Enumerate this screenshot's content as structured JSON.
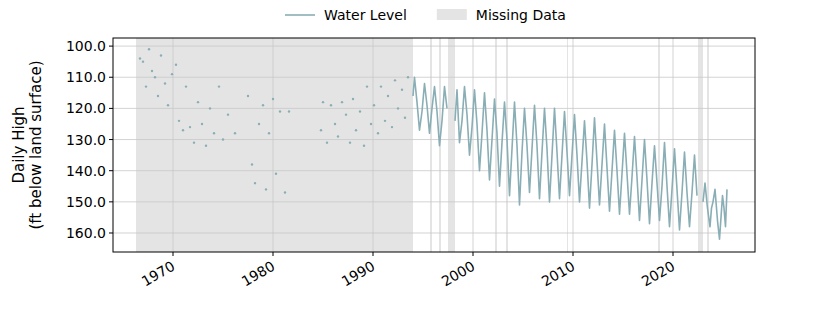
{
  "chart_data": {
    "type": "line",
    "ylabel": "Daily High\n(ft below land surface)",
    "xlim": [
      1964.0,
      2028.2
    ],
    "xticks": [
      1970,
      1980,
      1990,
      2000,
      2010,
      2020
    ],
    "ylim": [
      166.1,
      97.4
    ],
    "yticks": [
      {
        "value": 100,
        "label": "100.0"
      },
      {
        "value": 110,
        "label": "110.0"
      },
      {
        "value": 120,
        "label": "120.0"
      },
      {
        "value": 130,
        "label": "130.0"
      },
      {
        "value": 140,
        "label": "140.0"
      },
      {
        "value": 150,
        "label": "150.0"
      },
      {
        "value": 160,
        "label": "160.0"
      }
    ],
    "grid": true,
    "legend": "top",
    "x": [
      1966.7,
      1966.7,
      1967.0,
      1967.0,
      1967.3,
      1967.3,
      1967.6,
      1967.6,
      1967.9,
      1967.9,
      1968.2,
      1968.2,
      1968.5,
      1968.5,
      1968.8,
      1968.8,
      1969.2,
      1969.2,
      1969.5,
      1969.5,
      1969.9,
      1969.9,
      1970.3,
      1970.3,
      1970.6,
      1970.6,
      1971.0,
      1971.0,
      1971.3,
      1971.3,
      1971.7,
      1971.7,
      1972.1,
      1972.1,
      1972.5,
      1972.5,
      1972.9,
      1972.9,
      1973.3,
      1973.3,
      1973.7,
      1973.7,
      1974.1,
      1974.1,
      1974.6,
      1974.6,
      1975.0,
      1975.0,
      1975.5,
      1975.5,
      1976.2,
      1976.2,
      1977.5,
      1977.5,
      1977.9,
      1977.9,
      1978.2,
      1978.2,
      1978.6,
      1978.6,
      1979.0,
      1979.0,
      1979.3,
      1979.3,
      1979.6,
      1979.6,
      1980.0,
      1980.0,
      1980.3,
      1980.3,
      1980.7,
      1980.7,
      1981.2,
      1981.2,
      1981.6,
      1981.6,
      1984.8,
      1984.8,
      1985.0,
      1985.0,
      1985.4,
      1985.4,
      1985.8,
      1985.8,
      1986.2,
      1986.2,
      1986.5,
      1986.5,
      1986.9,
      1986.9,
      1987.3,
      1987.3,
      1987.7,
      1987.7,
      1988.0,
      1988.0,
      1988.3,
      1988.3,
      1988.7,
      1988.7,
      1989.1,
      1989.1,
      1989.4,
      1989.4,
      1989.8,
      1989.8,
      1990.1,
      1990.1,
      1990.5,
      1990.5,
      1990.8,
      1990.8,
      1991.2,
      1991.2,
      1991.5,
      1991.5,
      1991.9,
      1991.9,
      1992.2,
      1992.2,
      1992.5,
      1992.5,
      1992.9,
      1992.9,
      1993.2,
      1993.2,
      1993.5,
      1993.5,
      1994.0,
      1994.15,
      1994.4,
      1994.65,
      1994.9,
      1995.15,
      1995.4,
      1995.65,
      1995.9,
      1996.15,
      1996.4,
      1996.65,
      1996.9,
      1997.15,
      1997.4,
      1997.8,
      1998.2,
      1998.4,
      1998.65,
      1998.9,
      1999.15,
      1999.4,
      1999.65,
      1999.9,
      2000.15,
      2000.4,
      2000.65,
      2000.9,
      2001.15,
      2001.4,
      2001.65,
      2001.9,
      2002.15,
      2002.4,
      2002.65,
      2002.9,
      2003.15,
      2003.4,
      2003.65,
      2003.9,
      2004.15,
      2004.4,
      2004.65,
      2004.9,
      2005.15,
      2005.4,
      2005.65,
      2005.9,
      2006.15,
      2006.4,
      2006.65,
      2006.9,
      2007.15,
      2007.4,
      2007.65,
      2007.9,
      2008.15,
      2008.4,
      2008.65,
      2008.9,
      2009.15,
      2009.4,
      2009.65,
      2009.9,
      2010.15,
      2010.4,
      2010.65,
      2010.9,
      2011.15,
      2011.4,
      2011.65,
      2011.9,
      2012.15,
      2012.4,
      2012.65,
      2012.9,
      2013.15,
      2013.4,
      2013.65,
      2013.9,
      2014.15,
      2014.4,
      2014.65,
      2014.9,
      2015.15,
      2015.4,
      2015.65,
      2015.9,
      2016.15,
      2016.4,
      2016.65,
      2016.9,
      2017.15,
      2017.4,
      2017.65,
      2017.9,
      2018.15,
      2018.4,
      2018.65,
      2018.9,
      2019.15,
      2019.4,
      2019.65,
      2019.9,
      2020.15,
      2020.4,
      2020.65,
      2020.9,
      2021.15,
      2021.4,
      2021.65,
      2021.9,
      2022.15,
      2022.4,
      2022.7,
      2023.0,
      2023.2,
      2023.45,
      2023.7,
      2023.85,
      2024.0,
      2024.2,
      2024.45,
      2024.65,
      2024.8,
      2024.95,
      2025.1,
      2025.25,
      2025.4
    ],
    "series": [
      {
        "name": "Water Level",
        "type": "line",
        "color": "#8aaeb5",
        "values": [
          104,
          null,
          105,
          null,
          113,
          null,
          101,
          null,
          108,
          null,
          110,
          null,
          116,
          null,
          103,
          null,
          112,
          null,
          119,
          null,
          109,
          null,
          106,
          null,
          124,
          null,
          127,
          null,
          113,
          null,
          126,
          null,
          131,
          null,
          118,
          null,
          125,
          null,
          132,
          null,
          120,
          null,
          128,
          null,
          113,
          null,
          130,
          null,
          122,
          null,
          128,
          null,
          116,
          null,
          138,
          null,
          144,
          null,
          125,
          null,
          119,
          null,
          146,
          null,
          128,
          null,
          117,
          null,
          141,
          null,
          121,
          null,
          147,
          null,
          121,
          null,
          127,
          null,
          118,
          null,
          131,
          null,
          119,
          null,
          125,
          null,
          129,
          null,
          118,
          null,
          122,
          null,
          131,
          null,
          117,
          null,
          127,
          null,
          121,
          null,
          132,
          null,
          113,
          null,
          125,
          null,
          119,
          null,
          128,
          null,
          113,
          null,
          124,
          null,
          116,
          null,
          126,
          null,
          111,
          null,
          120,
          null,
          114,
          null,
          123,
          null,
          110,
          null,
          116,
          110,
          118,
          127,
          121,
          112,
          119,
          128,
          120,
          113,
          121,
          132,
          124,
          113,
          120,
          null,
          124,
          114,
          131,
          124,
          113,
          122,
          135,
          126,
          114,
          125,
          140,
          128,
          115,
          127,
          143,
          130,
          117,
          128,
          145,
          131,
          118,
          130,
          148,
          133,
          118,
          132,
          151,
          134,
          120,
          132,
          147,
          133,
          119,
          132,
          149,
          134,
          120,
          133,
          150,
          135,
          120,
          134,
          149,
          135,
          121,
          134,
          148,
          135,
          122,
          135,
          150,
          137,
          124,
          137,
          152,
          138,
          123,
          137,
          151,
          138,
          125,
          139,
          153,
          140,
          127,
          140,
          154,
          141,
          128,
          141,
          154,
          142,
          129,
          142,
          156,
          143,
          130,
          143,
          157,
          144,
          132,
          144,
          156,
          145,
          131,
          145,
          158,
          146,
          133,
          146,
          159,
          147,
          134,
          147,
          158,
          147,
          135,
          148,
          null,
          150,
          144,
          152,
          158,
          152,
          150,
          146,
          156,
          162,
          155,
          148,
          152,
          158,
          146
        ]
      },
      {
        "name": "Missing Data",
        "type": "span",
        "color": "#e4e4e4",
        "starts": [
          1966.3,
          1995.7,
          1996.6,
          1997.5,
          2002.2,
          2003.3,
          2009.4,
          2018.5,
          2022.5,
          2023.4
        ],
        "ends": [
          1994.0,
          1995.9,
          1996.8,
          1998.2,
          2002.4,
          2003.5,
          2009.5,
          2018.7,
          2023.0,
          2023.6
        ]
      }
    ]
  }
}
